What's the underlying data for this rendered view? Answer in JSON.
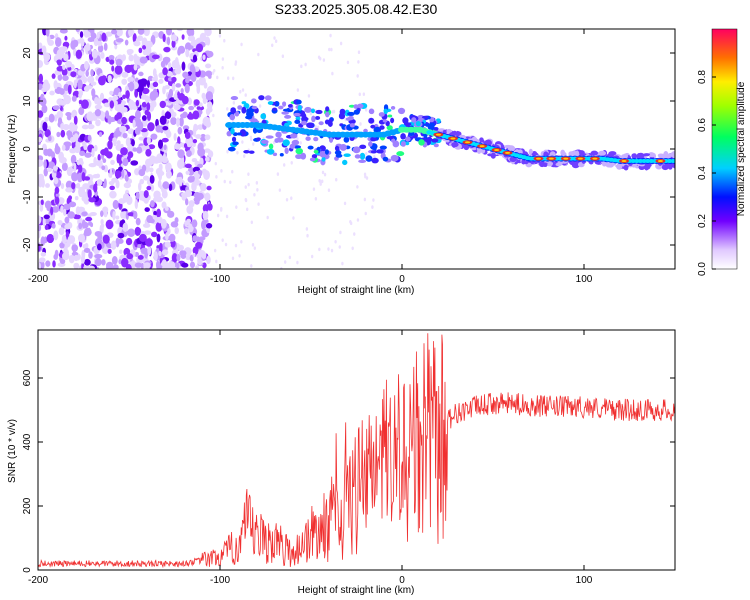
{
  "title": "S233.2025.305.08.42.E30",
  "colors": {
    "snr_line": "#f03030",
    "spectrogram_ridge": "#e03030",
    "axis": "#000000"
  },
  "chart_data": [
    {
      "type": "heatmap",
      "xlabel": "Height of straight line (km)",
      "ylabel": "Frequency (Hz)",
      "xlim": [
        -200,
        150
      ],
      "ylim": [
        -25,
        25
      ],
      "xticks": [
        "-200",
        "-100",
        "0",
        "100"
      ],
      "yticks": [
        "20",
        "10",
        "0",
        "-10",
        "-20"
      ],
      "colorbar": {
        "label": "Normalized spectral amplitude",
        "range": [
          0,
          1
        ],
        "ticks": [
          "0.0",
          "0.2",
          "0.4",
          "0.6",
          "0.8"
        ],
        "colormap": "rainbow (white-violet to magenta-red)"
      },
      "ridge": {
        "x": [
          -95,
          -80,
          -60,
          -40,
          -20,
          -10,
          0,
          10,
          20,
          30,
          40,
          50,
          60,
          70,
          80,
          90,
          100,
          110,
          120,
          130,
          140,
          150
        ],
        "frequency": [
          5,
          5,
          4,
          3,
          3,
          3,
          4,
          4,
          3,
          2,
          1,
          0,
          -1,
          -2,
          -2,
          -2,
          -2,
          -2,
          -2.5,
          -2.5,
          -2.5,
          -2.5
        ]
      },
      "noise_region": {
        "x_from": -200,
        "x_to": -105
      }
    },
    {
      "type": "line",
      "xlabel": "Height of straight line (km)",
      "ylabel": "SNR (10 * v/v)",
      "xlim": [
        -200,
        150
      ],
      "ylim": [
        0,
        750
      ],
      "xticks": [
        "-200",
        "-100",
        "0",
        "100"
      ],
      "yticks": [
        "0",
        "200",
        "400",
        "600"
      ],
      "series": [
        {
          "x": [
            -200,
            -120,
            -110,
            -100,
            -90,
            -85,
            -80,
            -70,
            -60,
            -50,
            -40,
            -30,
            -20,
            -10,
            0,
            10,
            15,
            20,
            25,
            30,
            40,
            50,
            60,
            80,
            100,
            120,
            150
          ],
          "y": [
            20,
            20,
            30,
            40,
            80,
            140,
            100,
            90,
            50,
            110,
            140,
            200,
            280,
            300,
            350,
            380,
            410,
            380,
            470,
            490,
            510,
            520,
            520,
            510,
            510,
            500,
            500
          ]
        }
      ]
    }
  ]
}
